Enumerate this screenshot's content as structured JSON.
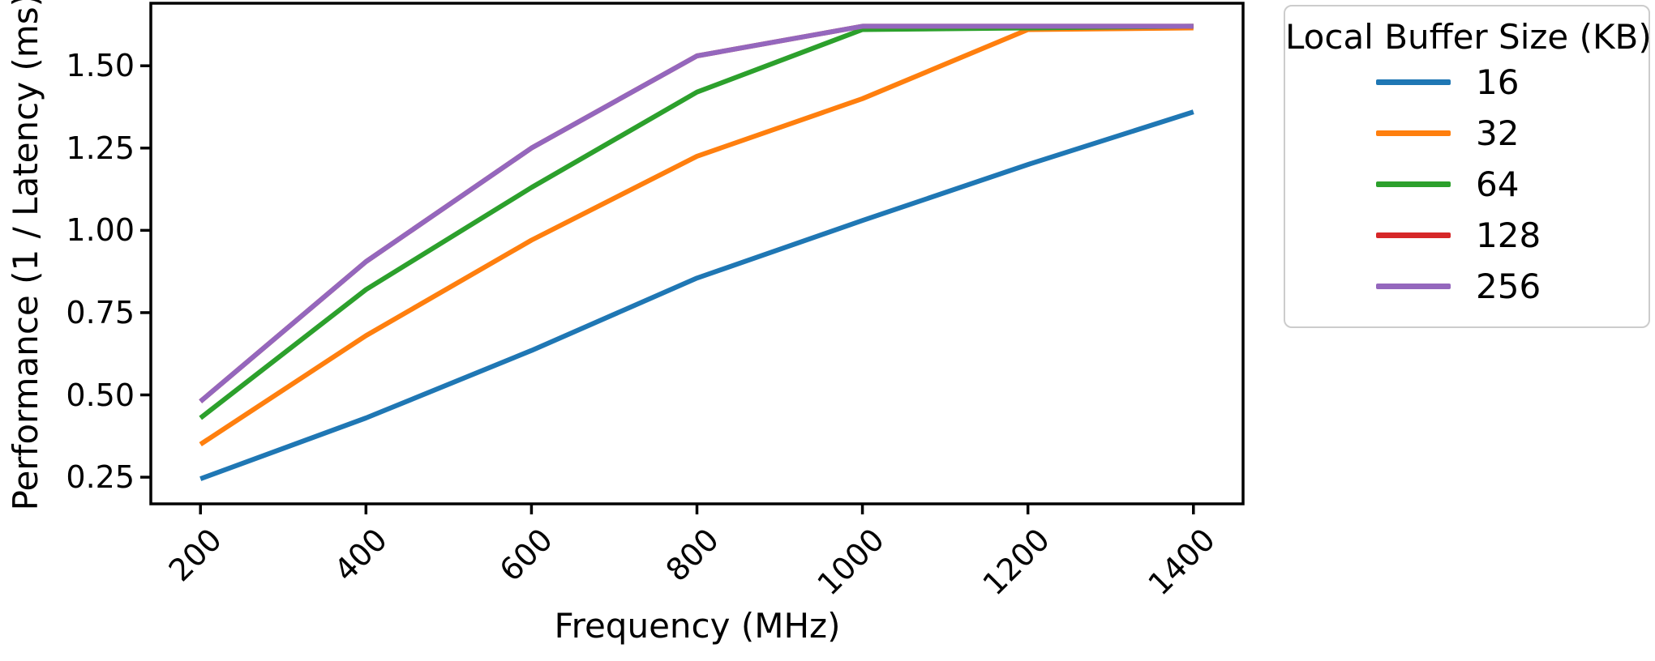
{
  "chart_data": {
    "type": "line",
    "x": [
      200,
      400,
      600,
      800,
      1000,
      1200,
      1400
    ],
    "x_tick_labels": [
      "200",
      "400",
      "600",
      "800",
      "1000",
      "1200",
      "1400"
    ],
    "y_ticks": [
      0.25,
      0.5,
      0.75,
      1.0,
      1.25,
      1.5
    ],
    "y_tick_labels": [
      "0.25",
      "0.50",
      "0.75",
      "1.00",
      "1.25",
      "1.50"
    ],
    "series": [
      {
        "name": "16",
        "color": "#1f77b4",
        "values": [
          0.245,
          0.43,
          0.635,
          0.855,
          1.03,
          1.2,
          1.36
        ]
      },
      {
        "name": "32",
        "color": "#ff7f0e",
        "values": [
          0.35,
          0.68,
          0.97,
          1.225,
          1.4,
          1.61,
          1.615
        ]
      },
      {
        "name": "64",
        "color": "#2ca02c",
        "values": [
          0.43,
          0.82,
          1.13,
          1.42,
          1.61,
          1.615,
          1.62
        ]
      },
      {
        "name": "128",
        "color": "#d62728",
        "values": [
          0.48,
          0.905,
          1.25,
          1.53,
          1.62,
          1.62,
          1.62
        ]
      },
      {
        "name": "256",
        "color": "#9467bd",
        "values": [
          0.48,
          0.905,
          1.25,
          1.53,
          1.62,
          1.62,
          1.62
        ]
      }
    ],
    "xlabel": "Frequency (MHz)",
    "ylabel": "Performance (1 / Latency (ms))",
    "legend_title": "Local Buffer Size (KB)",
    "legend_position": "outside upper right",
    "xlim": [
      140,
      1460
    ],
    "ylim": [
      0.169,
      1.69
    ],
    "grid": false,
    "notes": "128 KB line coincides with the 256 KB line and is hidden beneath it in the plot"
  }
}
